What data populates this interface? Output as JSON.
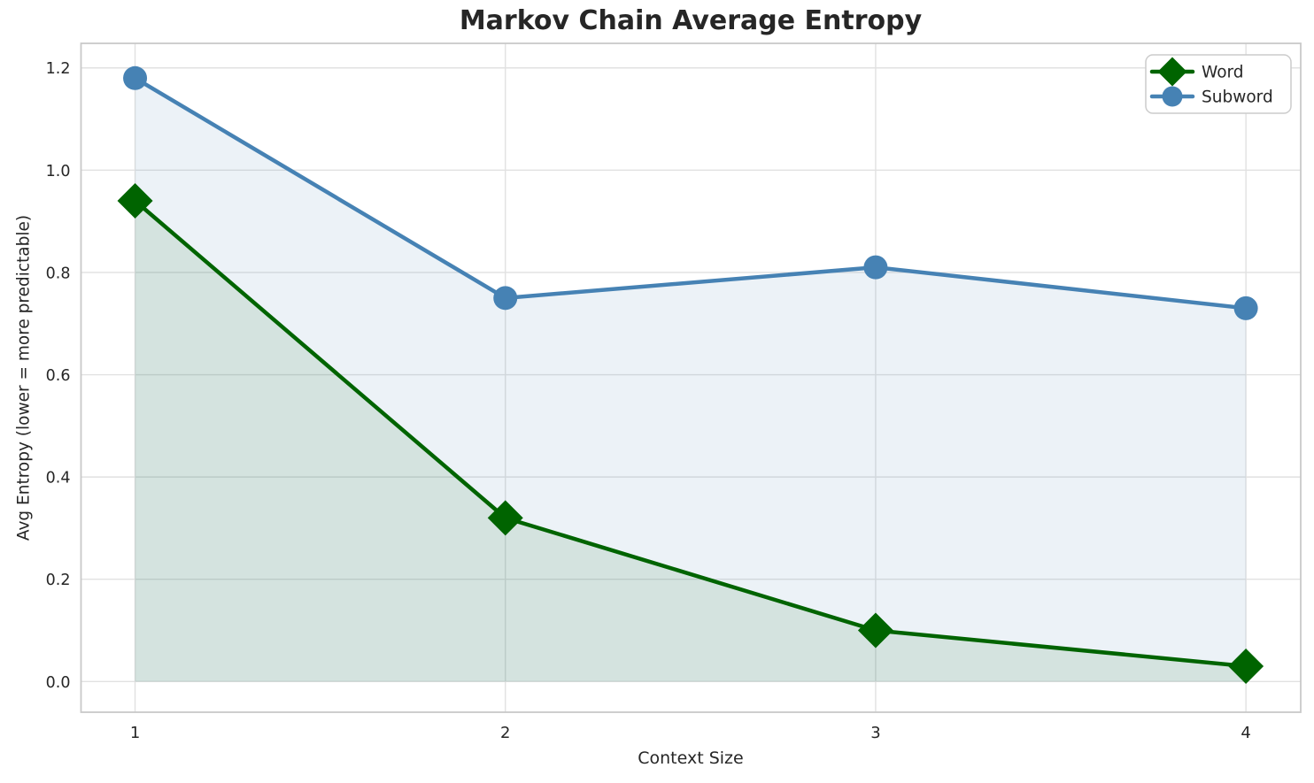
{
  "chart_data": {
    "type": "line",
    "title": "Markov Chain Average Entropy",
    "xlabel": "Context Size",
    "ylabel": "Avg Entropy (lower = more predictable)",
    "x": [
      1,
      2,
      3,
      4
    ],
    "series": [
      {
        "name": "Word",
        "color": "#006400",
        "marker": "diamond",
        "fill_to_zero": true,
        "values": [
          0.94,
          0.32,
          0.1,
          0.03
        ]
      },
      {
        "name": "Subword",
        "color": "#4682b4",
        "marker": "circle",
        "fill_to_zero": true,
        "values": [
          1.18,
          0.75,
          0.81,
          0.73
        ]
      }
    ],
    "xlim": [
      0.854,
      4.148
    ],
    "ylim": [
      -0.06,
      1.248
    ],
    "xticks": [
      {
        "value": 1,
        "label": "1"
      },
      {
        "value": 2,
        "label": "2"
      },
      {
        "value": 3,
        "label": "3"
      },
      {
        "value": 4,
        "label": "4"
      }
    ],
    "yticks": [
      {
        "value": 0.0,
        "label": "0.0"
      },
      {
        "value": 0.2,
        "label": "0.2"
      },
      {
        "value": 0.4,
        "label": "0.4"
      },
      {
        "value": 0.6,
        "label": "0.6"
      },
      {
        "value": 0.8,
        "label": "0.8"
      },
      {
        "value": 1.0,
        "label": "1.0"
      },
      {
        "value": 1.2,
        "label": "1.2"
      }
    ],
    "grid": true,
    "fill_alpha": 0.1,
    "legend": {
      "position": "upper right",
      "items": [
        "Word",
        "Subword"
      ]
    },
    "colors": {
      "grid": "#e1e1e1",
      "spine": "#c9c9c9",
      "text": "#262626",
      "legend_border": "#cccccc",
      "background": "#ffffff"
    }
  }
}
